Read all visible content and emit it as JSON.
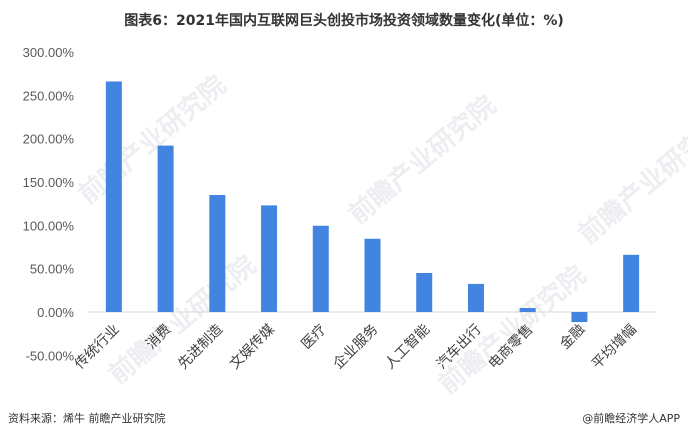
{
  "title": "图表6：2021年国内互联网巨头创投市场投资领域数量变化(单位：%)",
  "source": "资料来源：烯牛 前瞻产业研究院",
  "credit": "@前瞻经济学人APP",
  "watermark": "前瞻产业研究院",
  "chart_data": {
    "type": "bar",
    "title": "图表6：2021年国内互联网巨头创投市场投资领域数量变化(单位：%)",
    "categories": [
      "传统行业",
      "消费",
      "先进制造",
      "文娱传媒",
      "医疗",
      "企业服务",
      "人工智能",
      "汽车出行",
      "电商零售",
      "金融",
      "平均增幅"
    ],
    "values": [
      266,
      192,
      135,
      123,
      99.5,
      84.5,
      45,
      32.4,
      4.6,
      -11.6,
      66
    ],
    "ylim": [
      -50,
      300
    ],
    "yticks": [
      "-50.00%",
      "0.00%",
      "50.00%",
      "100.00%",
      "150.00%",
      "200.00%",
      "250.00%",
      "300.00%"
    ],
    "grid": false,
    "color": "#4285E0"
  }
}
